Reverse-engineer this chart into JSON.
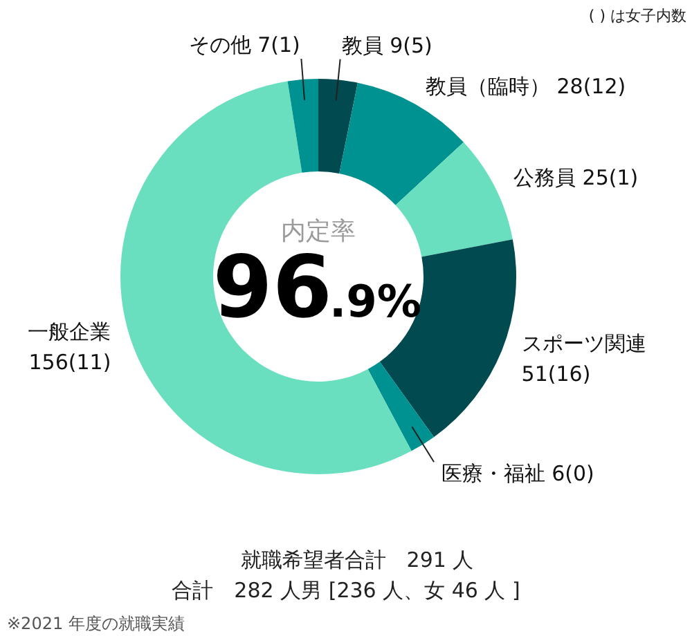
{
  "chart_data": {
    "type": "donut",
    "title": "内定率",
    "categories": [
      "教員",
      "教員（臨時）",
      "公務員",
      "スポーツ関連",
      "医療・福祉",
      "一般企業",
      "その他"
    ],
    "values": [
      9,
      28,
      25,
      51,
      6,
      156,
      7
    ],
    "value_labels": [
      "9(5)",
      "28(12)",
      "25(1)",
      "51(16)",
      "6(0)",
      "156(11)",
      "7(1)"
    ],
    "colors": [
      "#004a50",
      "#009290",
      "#6adfbf",
      "#004a50",
      "#009290",
      "#6adfbf",
      "#009290"
    ],
    "annotations": [
      "( ) は女子内数",
      "96.9%",
      "就職希望者合計　291 人",
      "合計　282 人男 [236 人、女 46 人 ]",
      "※2021 年度の就職実績"
    ]
  }
}
